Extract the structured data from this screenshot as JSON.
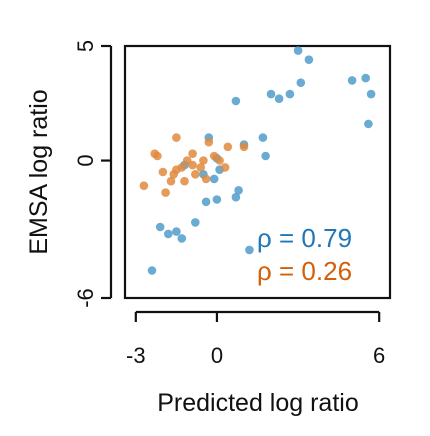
{
  "chart_data": {
    "type": "scatter",
    "xlabel": "Predicted log ratio",
    "ylabel": "EMSA log ratio",
    "xlim": [
      -3.4,
      6.4
    ],
    "ylim": [
      -6,
      5
    ],
    "xticks": [
      -3,
      0,
      6
    ],
    "xtick_labels": [
      "-3",
      "0",
      "6"
    ],
    "yticks": [
      -6,
      0,
      5
    ],
    "ytick_labels": [
      "-6",
      "0",
      "5"
    ],
    "grid": false,
    "colors": {
      "blue": "#4f9cca",
      "orange": "#e08a3c",
      "blue_text": "#1f78b4",
      "orange_text": "#d35f0a"
    },
    "series": [
      {
        "color": "blue",
        "points": [
          [
            -2.4,
            -4.8
          ],
          [
            -2.1,
            -2.9
          ],
          [
            -1.8,
            -3.2
          ],
          [
            -1.5,
            -3.1
          ],
          [
            -1.3,
            -3.4
          ],
          [
            -0.8,
            -2.7
          ],
          [
            -0.4,
            -1.8
          ],
          [
            0.0,
            -1.7
          ],
          [
            -1.2,
            -0.2
          ],
          [
            -0.5,
            -0.6
          ],
          [
            0.0,
            0.1
          ],
          [
            -0.1,
            -0.8
          ],
          [
            0.1,
            -0.4
          ],
          [
            -0.3,
            1.0
          ],
          [
            0.7,
            -1.6
          ],
          [
            0.8,
            -1.3
          ],
          [
            1.0,
            0.7
          ],
          [
            1.2,
            -3.9
          ],
          [
            1.7,
            1.0
          ],
          [
            1.8,
            0.2
          ],
          [
            0.7,
            2.6
          ],
          [
            2.0,
            2.9
          ],
          [
            2.3,
            2.7
          ],
          [
            2.7,
            2.9
          ],
          [
            3.0,
            4.8
          ],
          [
            3.1,
            3.4
          ],
          [
            3.4,
            4.4
          ],
          [
            5.0,
            3.5
          ],
          [
            5.5,
            3.6
          ],
          [
            5.7,
            2.9
          ],
          [
            5.6,
            1.6
          ]
        ]
      },
      {
        "color": "orange",
        "points": [
          [
            -2.7,
            -1.1
          ],
          [
            -2.3,
            0.3
          ],
          [
            -2.2,
            0.2
          ],
          [
            -2.0,
            -0.5
          ],
          [
            -1.9,
            -1.4
          ],
          [
            -1.7,
            -0.9
          ],
          [
            -1.6,
            -0.6
          ],
          [
            -1.5,
            -0.4
          ],
          [
            -1.5,
            1.0
          ],
          [
            -1.3,
            -0.3
          ],
          [
            -1.2,
            -0.9
          ],
          [
            -1.1,
            0.0
          ],
          [
            -0.9,
            0.3
          ],
          [
            -0.8,
            -0.6
          ],
          [
            -0.6,
            -0.3
          ],
          [
            -0.5,
            0.0
          ],
          [
            -0.4,
            -0.8
          ],
          [
            -0.3,
            0.8
          ],
          [
            -0.1,
            0.2
          ],
          [
            0.1,
            0.0
          ],
          [
            0.3,
            -0.3
          ],
          [
            0.4,
            0.6
          ],
          [
            1.0,
            0.6
          ],
          [
            -0.9,
            -0.2
          ]
        ]
      }
    ],
    "annotations": [
      {
        "text": "ρ = 0.79",
        "color": "blue_text"
      },
      {
        "text": "ρ = 0.26",
        "color": "orange_text"
      }
    ]
  }
}
